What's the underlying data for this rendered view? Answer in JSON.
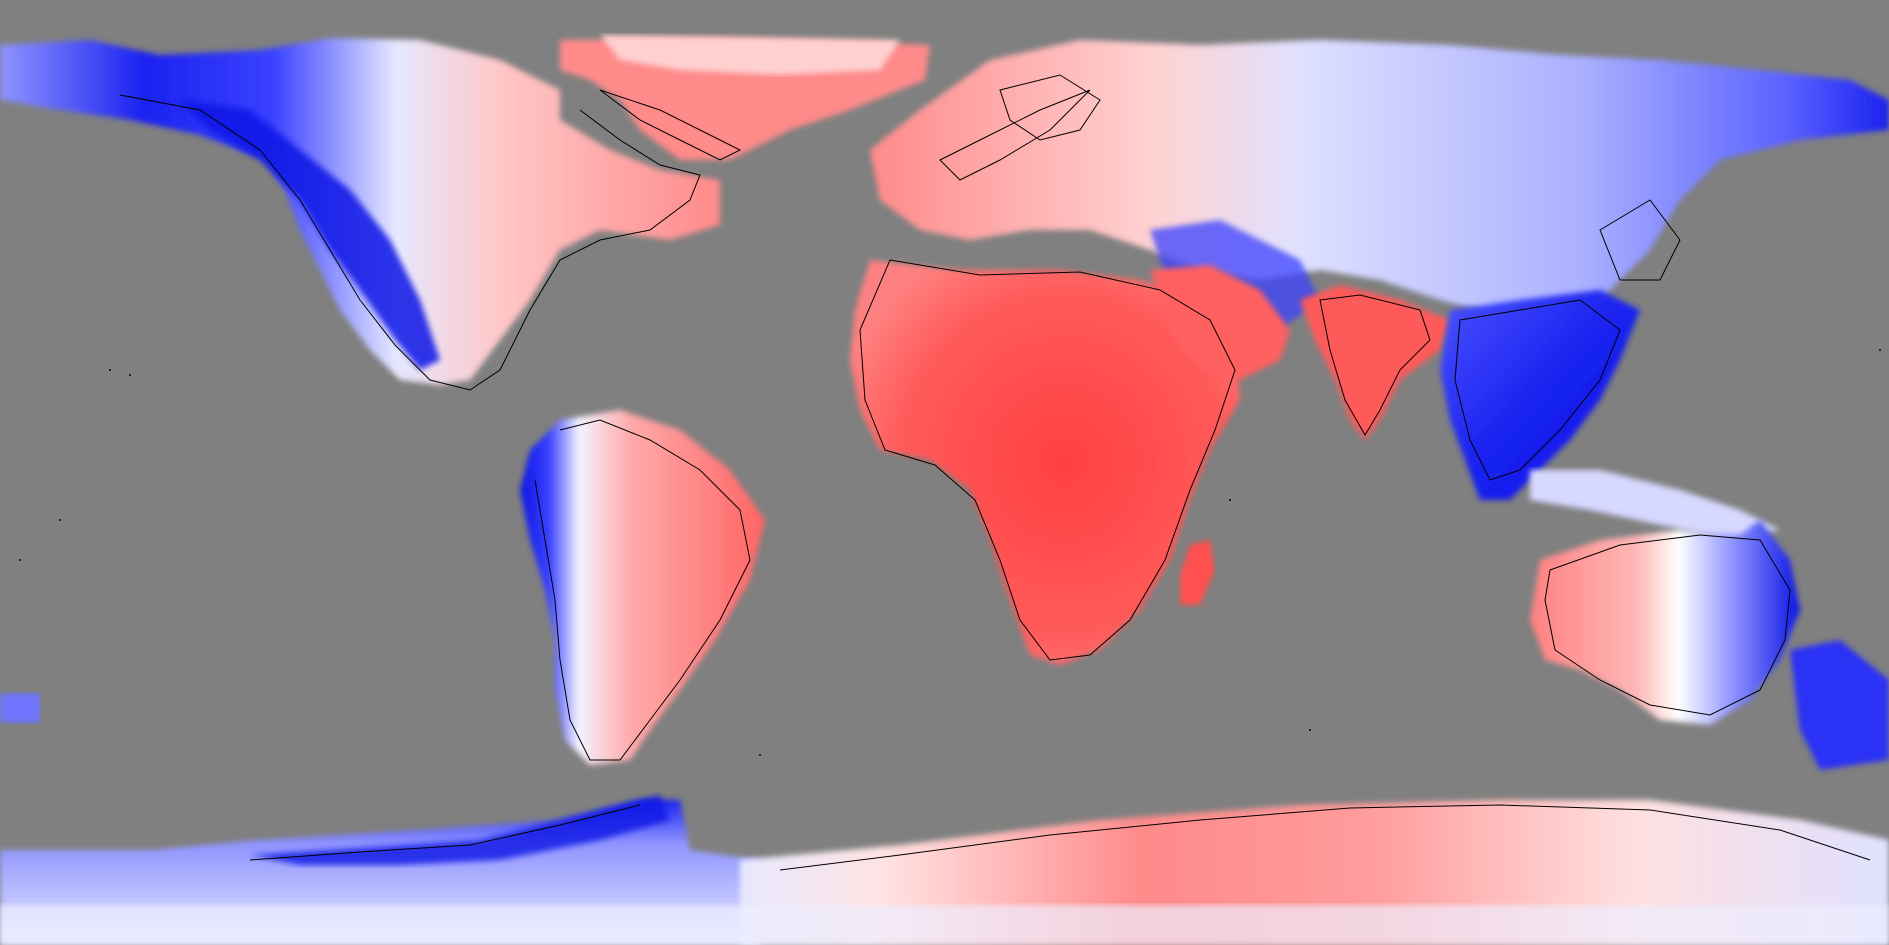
{
  "map": {
    "projection": "equirectangular",
    "background_color": "#808080",
    "ocean_color": "#808080",
    "coastline_color": "#000000",
    "palette": {
      "warm_deep": "#ff4a4a",
      "warm_mid": "#ff7a7a",
      "warm_light": "#ffc2c2",
      "neutral": "#ffffff",
      "cool_light": "#c8ccff",
      "cool_mid": "#6f74ff",
      "cool_deep": "#0a14e6"
    },
    "regions": [
      "north-america",
      "greenland",
      "south-america",
      "europe",
      "africa",
      "madagascar",
      "arabia",
      "north-asia",
      "india",
      "southeast-asia",
      "australia",
      "new-zealand",
      "antarctica-west",
      "antarctica-east"
    ]
  }
}
